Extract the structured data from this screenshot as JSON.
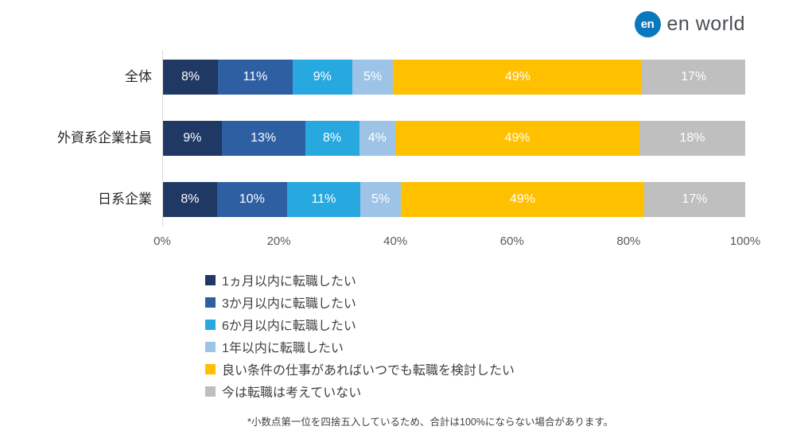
{
  "logo": {
    "mark_text": "en",
    "brand_text": "en world",
    "circle_color": "#0a78be"
  },
  "chart_data": {
    "type": "bar",
    "orientation": "horizontal",
    "stacked": true,
    "categories": [
      "全体",
      "外資系企業社員",
      "日系企業"
    ],
    "series": [
      {
        "name": "1ヵ月以内に転職したい",
        "color": "#1f3864",
        "values": [
          8,
          9,
          8
        ]
      },
      {
        "name": "3か月以内に転職したい",
        "color": "#2e5fa3",
        "values": [
          11,
          13,
          10
        ]
      },
      {
        "name": "6か月以内に転職したい",
        "color": "#27a8df",
        "values": [
          9,
          8,
          11
        ]
      },
      {
        "name": "1年以内に転職したい",
        "color": "#9dc3e6",
        "values": [
          5,
          4,
          5
        ]
      },
      {
        "name": "良い条件の仕事があればいつでも転職を検討したい",
        "color": "#ffc000",
        "values": [
          49,
          49,
          49
        ]
      },
      {
        "name": "今は転職は考えていない",
        "color": "#bfbfbf",
        "values": [
          17,
          18,
          17
        ]
      }
    ],
    "x_ticks": [
      "0%",
      "20%",
      "40%",
      "60%",
      "80%",
      "100%"
    ],
    "xlim": [
      0,
      100
    ],
    "value_suffix": "%",
    "legend_position": "bottom",
    "grid": false
  },
  "footnote": "*小数点第一位を四捨五入しているため、合計は100%にならない場合があります。"
}
